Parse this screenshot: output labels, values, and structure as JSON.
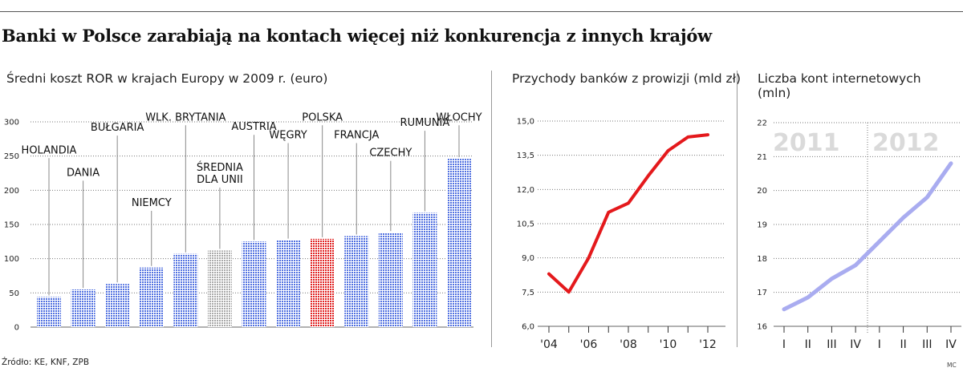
{
  "title": "Banki w Polsce zarabiają na kontach więcej niż konkurencja z innych krajów",
  "source": "Źródło: KE, KNF, ZPB",
  "credit": "MC",
  "colors": {
    "bar": "#4f6fe0",
    "bar_average": "#a9a9a9",
    "bar_highlight": "#e02020",
    "line_revenue": "#e4191c",
    "line_accounts": "#a9acf0",
    "year_label": "#dadada"
  },
  "chart_data": [
    {
      "type": "bar",
      "title": "Średni koszt ROR w krajach Europy w 2009 r. (euro)",
      "categories": [
        "HOLANDIA",
        "DANIA",
        "BUŁGARIA",
        "NIEMCY",
        "WLK. BRYTANIA",
        "ŚREDNIA DLA UNII",
        "AUSTRIA",
        "WĘGRY",
        "POLSKA",
        "FRANCJA",
        "CZECHY",
        "RUMUNIA",
        "WŁOCHY"
      ],
      "label_lines": [
        [
          "HOLANDIA"
        ],
        [
          "DANIA"
        ],
        [
          "BUŁGARIA"
        ],
        [
          "NIEMCY"
        ],
        [
          "WLK. BRYTANIA"
        ],
        [
          "ŚREDNIA",
          "DLA UNII"
        ],
        [
          "AUSTRIA"
        ],
        [
          "WĘGRY"
        ],
        [
          "POLSKA"
        ],
        [
          "FRANCJA"
        ],
        [
          "CZECHY"
        ],
        [
          "RUMUNIA"
        ],
        [
          "WŁOCHY"
        ]
      ],
      "label_levels": [
        254,
        221,
        287,
        177,
        302,
        211,
        288,
        276,
        302,
        276,
        250,
        294,
        302
      ],
      "values": [
        44,
        55,
        63,
        87,
        107,
        112,
        125,
        127,
        129,
        133,
        138,
        167,
        246
      ],
      "highlight": "POLSKA",
      "average": "ŚREDNIA DLA UNII",
      "yticks": [
        "0",
        "50",
        "100",
        "150",
        "200",
        "250",
        "300"
      ],
      "ylim": [
        0,
        300
      ],
      "grid": "dotted"
    },
    {
      "type": "line",
      "title": "Przychody banków z prowizji (mld zł)",
      "x": [
        2004,
        2005,
        2006,
        2007,
        2008,
        2009,
        2010,
        2011,
        2012
      ],
      "values": [
        8.3,
        7.5,
        9.0,
        11.0,
        11.4,
        12.6,
        13.7,
        14.3,
        14.4
      ],
      "xticks": [
        "'04",
        "'06",
        "'08",
        "'10",
        "'12"
      ],
      "yticks": [
        "6,0",
        "7,5",
        "9,0",
        "10,5",
        "12,0",
        "13,5",
        "15,0"
      ],
      "ylim": [
        6,
        15
      ],
      "grid": "dotted"
    },
    {
      "type": "line",
      "title": "Liczba kont internetowych (mln)",
      "x": [
        "I",
        "II",
        "III",
        "IV",
        "I",
        "II",
        "III",
        "IV"
      ],
      "values": [
        16.5,
        16.85,
        17.4,
        17.8,
        18.5,
        19.2,
        19.8,
        20.8
      ],
      "year_labels": [
        "2011",
        "2012"
      ],
      "yticks": [
        "16",
        "17",
        "18",
        "19",
        "20",
        "21",
        "22"
      ],
      "ylim": [
        16,
        22
      ],
      "grid": "dotted"
    }
  ]
}
